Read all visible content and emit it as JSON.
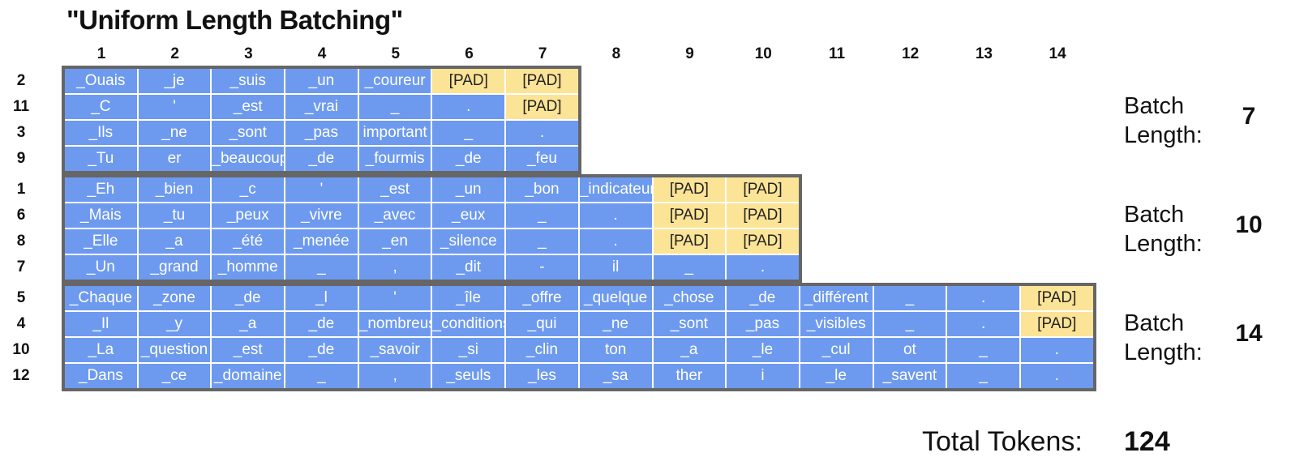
{
  "title": "\"Uniform Length Batching\"",
  "colors": {
    "token": "#6d9aef",
    "pad": "#fce496",
    "border": "#666666"
  },
  "column_headers": [
    "1",
    "2",
    "3",
    "4",
    "5",
    "6",
    "7",
    "8",
    "9",
    "10",
    "11",
    "12",
    "13",
    "14"
  ],
  "batches": [
    {
      "batch_length_label": "Batch Length:",
      "batch_length": "7",
      "rows": [
        {
          "label": "2",
          "tokens": [
            "_Ouais",
            "_je",
            "_suis",
            "_un",
            "_coureur",
            "[PAD]",
            "[PAD]"
          ]
        },
        {
          "label": "11",
          "tokens": [
            "_C",
            "'",
            "_est",
            "_vrai",
            "_",
            ".",
            "[PAD]"
          ]
        },
        {
          "label": "3",
          "tokens": [
            "_Ils",
            "_ne",
            "_sont",
            "_pas",
            "important",
            "_",
            "."
          ]
        },
        {
          "label": "9",
          "tokens": [
            "_Tu",
            "er",
            "_beaucoup",
            "_de",
            "_fourmis",
            "_de",
            "_feu"
          ]
        }
      ]
    },
    {
      "batch_length_label": "Batch Length:",
      "batch_length": "10",
      "rows": [
        {
          "label": "1",
          "tokens": [
            "_Eh",
            "_bien",
            "_c",
            "'",
            "_est",
            "_un",
            "_bon",
            "_indicateur",
            "[PAD]",
            "[PAD]"
          ]
        },
        {
          "label": "6",
          "tokens": [
            "_Mais",
            "_tu",
            "_peux",
            "_vivre",
            "_avec",
            "_eux",
            "_",
            ".",
            "[PAD]",
            "[PAD]"
          ]
        },
        {
          "label": "8",
          "tokens": [
            "_Elle",
            "_a",
            "_été",
            "_menée",
            "_en",
            "_silence",
            "_",
            ".",
            "[PAD]",
            "[PAD]"
          ]
        },
        {
          "label": "7",
          "tokens": [
            "_Un",
            "_grand",
            "_homme",
            "_",
            ",",
            "_dit",
            "-",
            "il",
            "_",
            "."
          ]
        }
      ]
    },
    {
      "batch_length_label": "Batch Length:",
      "batch_length": "14",
      "rows": [
        {
          "label": "5",
          "tokens": [
            "_Chaque",
            "_zone",
            "_de",
            "_l",
            "'",
            "_île",
            "_offre",
            "_quelque",
            "_chose",
            "_de",
            "_différent",
            "_",
            ".",
            "[PAD]"
          ]
        },
        {
          "label": "4",
          "tokens": [
            "_Il",
            "_y",
            "_a",
            "_de",
            "_nombreuses",
            "_conditions",
            "_qui",
            "_ne",
            "_sont",
            "_pas",
            "_visibles",
            "_",
            ".",
            "[PAD]"
          ]
        },
        {
          "label": "10",
          "tokens": [
            "_La",
            "_question",
            "_est",
            "_de",
            "_savoir",
            "_si",
            "_clin",
            "ton",
            "_a",
            "_le",
            "_cul",
            "ot",
            "_",
            "."
          ]
        },
        {
          "label": "12",
          "tokens": [
            "_Dans",
            "_ce",
            "_domaine",
            "_",
            ",",
            "_seuls",
            "_les",
            "_sa",
            "ther",
            "i",
            "_le",
            "_savent",
            "_",
            "."
          ]
        }
      ]
    }
  ],
  "total": {
    "label": "Total Tokens:",
    "value": "124"
  }
}
